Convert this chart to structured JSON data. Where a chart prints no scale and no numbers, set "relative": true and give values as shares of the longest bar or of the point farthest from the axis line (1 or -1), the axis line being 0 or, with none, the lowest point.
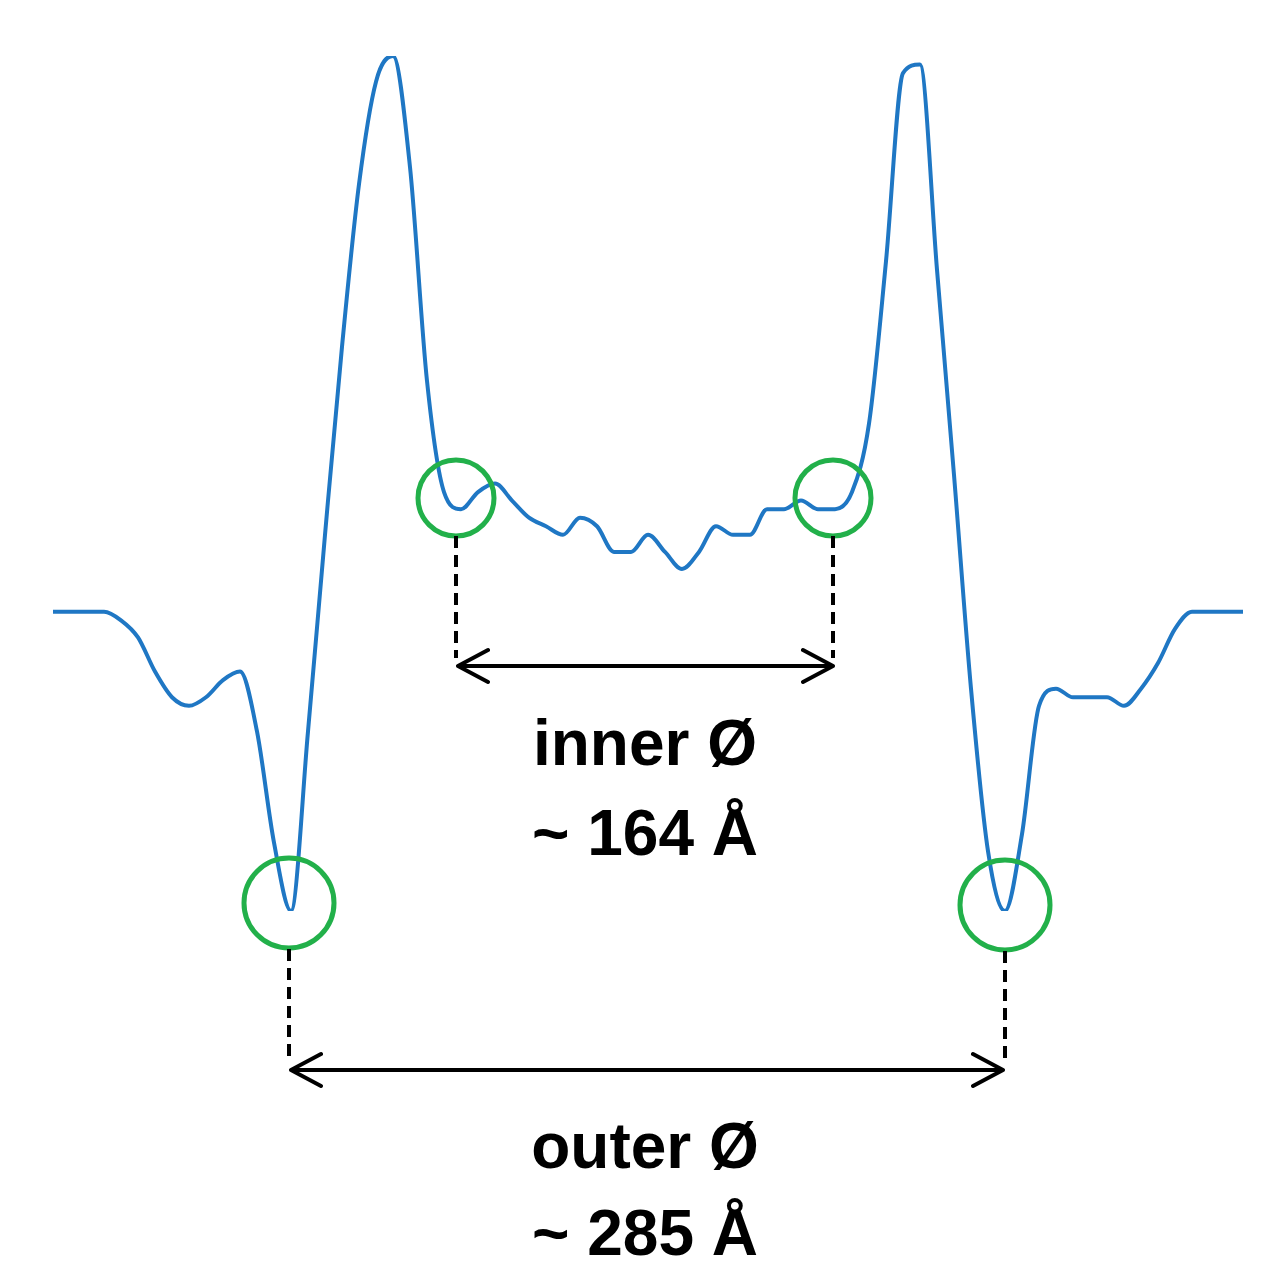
{
  "chart_data": {
    "type": "line",
    "relative": true,
    "marker": "none",
    "line_style": "solid",
    "categories": [
      null,
      null,
      null,
      null,
      null,
      null,
      null,
      null,
      null,
      null,
      null,
      null,
      null,
      null,
      null,
      null,
      null,
      null,
      null,
      null,
      null,
      null,
      null,
      null,
      null,
      null,
      null,
      null,
      null,
      null,
      null,
      null,
      null,
      null,
      null,
      null,
      null,
      null,
      null,
      null,
      null,
      null,
      null,
      null,
      null,
      null,
      null,
      null,
      null,
      null,
      null,
      null,
      null,
      null,
      null,
      null,
      null,
      null,
      null,
      null,
      null,
      null,
      null,
      null,
      null,
      null,
      null,
      null,
      null,
      null,
      null
    ],
    "series": [
      {
        "color": "#1f77c4",
        "values": [
          0.35,
          0.35,
          0.35,
          0.35,
          0.34,
          0.32,
          0.28,
          0.25,
          0.24,
          0.25,
          0.27,
          0.28,
          0.21,
          0.08,
          0.0,
          0.21,
          0.44,
          0.66,
          0.85,
          0.97,
          1,
          0.87,
          0.62,
          0.49,
          0.47,
          0.49,
          0.5,
          0.48,
          0.46,
          0.45,
          0.44,
          0.46,
          0.45,
          0.42,
          0.42,
          0.44,
          0.42,
          0.4,
          0.42,
          0.45,
          0.44,
          0.44,
          0.47,
          0.47,
          0.48,
          0.47,
          0.47,
          0.49,
          0.57,
          0.76,
          0.98,
          0.99,
          0.75,
          0.51,
          0.26,
          0.07,
          0,
          0.09,
          0.24,
          0.26,
          0.25,
          0.25,
          0.25,
          0.24,
          0.26,
          0.29,
          0.33,
          0.35,
          0.35,
          0.35,
          0.35
        ]
      }
    ],
    "annotations": [
      "inner Ø",
      "~ 164 Å",
      "outer Ø",
      "~ 285 Å"
    ]
  }
}
